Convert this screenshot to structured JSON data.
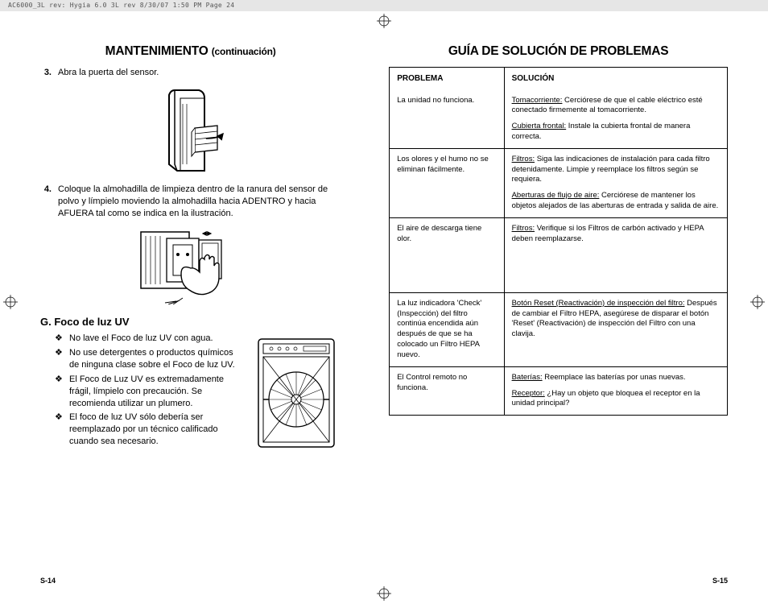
{
  "header_print_info": "AC6000_3L rev: Hygia 6.0 3L rev  8/30/07  1:50 PM  Page 24",
  "left": {
    "title_main": "MANTENIMIENTO ",
    "title_sub": "(continuación)",
    "step3_num": "3.",
    "step3_text": "Abra la puerta del sensor.",
    "step4_num": "4.",
    "step4_text": "Coloque la almohadilla de limpieza dentro de la ranura del sensor de polvo y límpielo moviendo la almohadilla hacia ADENTRO y hacia AFUERA tal como se indica en la ilustración.",
    "section_g": "G. Foco de luz UV",
    "bullets": [
      "No lave el Foco de luz UV con agua.",
      "No use detergentes o productos químicos de ninguna clase sobre el Foco de luz UV.",
      "El Foco de Luz UV es extremadamente frágil, límpielo con precaución. Se recomienda utilizar un plumero.",
      "El foco de luz UV sólo debería ser reemplazado por un técnico calificado cuando sea necesario."
    ]
  },
  "right": {
    "title": "GUÍA DE SOLUCIÓN DE PROBLEMAS",
    "head_problema": "PROBLEMA",
    "head_solucion": "SOLUCIÓN",
    "rows": [
      {
        "problem": "La unidad no funciona.",
        "solutions": [
          {
            "u": "Tomacorriente:",
            "t": " Cerciórese de que el cable eléctrico esté conectado firmemente al tomacorriente."
          },
          {
            "u": "Cubierta frontal:",
            "t": " Instale la cubierta frontal de manera correcta."
          }
        ]
      },
      {
        "problem": "Los olores y el humo no se eliminan fácilmente.",
        "solutions": [
          {
            "u": "Filtros:",
            "t": " Siga las indicaciones de instalación para cada filtro detenidamente. Limpie y reemplace los filtros según se requiera."
          },
          {
            "u": "Aberturas de flujo de aire:",
            "t": " Cerciórese de mantener los objetos alejados de las aberturas de entrada y salida de aire."
          }
        ]
      },
      {
        "problem": "El aire de descarga tiene olor.",
        "tall": true,
        "solutions": [
          {
            "u": "Filtros:",
            "t": " Verifique si los Filtros de carbón activado y HEPA deben reemplazarse."
          }
        ]
      },
      {
        "problem": "La luz indicadora 'Check' (Inspección) del filtro continúa encendida aún después de que se ha colocado un Filtro HEPA nuevo.",
        "solutions": [
          {
            "u": "Botón Reset (Reactivación) de inspección del filtro:",
            "t": " Después de cambiar el Filtro HEPA, asegúrese de disparar el botón 'Reset' (Reactivación) de inspección del Filtro con una clavija."
          }
        ]
      },
      {
        "problem": "El Control remoto no funciona.",
        "solutions": [
          {
            "u": "Baterías:",
            "t": " Reemplace las baterías por unas nuevas."
          },
          {
            "u": "Receptor:",
            "t": " ¿Hay un objeto que bloquea el receptor en la unidad principal?"
          }
        ]
      }
    ]
  },
  "footer_left": "S-14",
  "footer_right": "S-15"
}
